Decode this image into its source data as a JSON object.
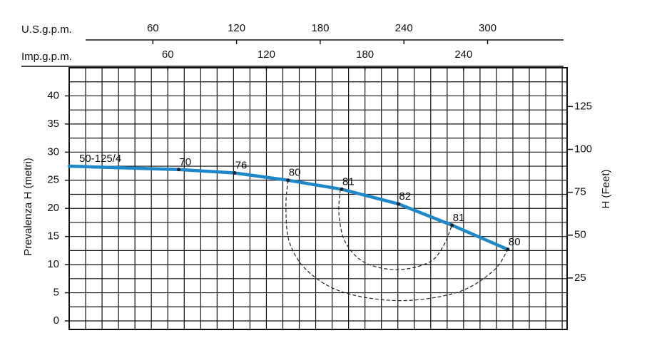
{
  "chart_data": {
    "type": "line",
    "x_label": "U.S.g.p.m.",
    "x2_label": "Imp.g.p.m.",
    "y_label": "Prevalenza H (metri)",
    "y2_label": "H (Feet)",
    "xlim": [
      0,
      357
    ],
    "xticks": [
      60,
      120,
      180,
      240,
      300
    ],
    "x2lim": [
      0,
      303
    ],
    "x2ticks": [
      60,
      120,
      180,
      240
    ],
    "ylim": [
      0,
      45
    ],
    "yticks": [
      0,
      5,
      10,
      15,
      20,
      25,
      30,
      35,
      40
    ],
    "y2lim": [
      0,
      147.6
    ],
    "y2ticks": [
      25,
      50,
      75,
      100,
      125
    ],
    "grid": true,
    "series": [
      {
        "name": "50-125/4",
        "color": "#1f88c9",
        "x": [
          0,
          78.5,
          118.5,
          156.9,
          195.4,
          236,
          274.5,
          314.5
        ],
        "values": [
          27.5,
          26.9,
          26.3,
          25.0,
          23.4,
          20.8,
          17.0,
          12.7
        ]
      }
    ],
    "efficiency_points": {
      "x": [
        78.5,
        118.5,
        156.9,
        195.4,
        236,
        274.5,
        314.5
      ],
      "values": [
        26.9,
        26.3,
        25.0,
        23.4,
        20.8,
        17.0,
        12.7
      ],
      "labels": [
        70,
        76,
        80,
        81,
        82,
        81,
        80
      ]
    },
    "efficiency_curves": [
      {
        "x": [
          156.9,
          155.4,
          157.9,
          170.8,
          196.4,
          237.4,
          278.5,
          304.1,
          314.4
        ],
        "values": [
          25.0,
          20.3,
          14.0,
          8.9,
          5.1,
          3.6,
          5.1,
          8.9,
          12.7
        ]
      },
      {
        "x": [
          194.4,
          193.4,
          198.0,
          211.8,
          234.9,
          258.0,
          268.2,
          274.4
        ],
        "values": [
          23.4,
          19.0,
          14.0,
          10.4,
          9.1,
          10.4,
          13.3,
          17.0
        ]
      }
    ]
  }
}
